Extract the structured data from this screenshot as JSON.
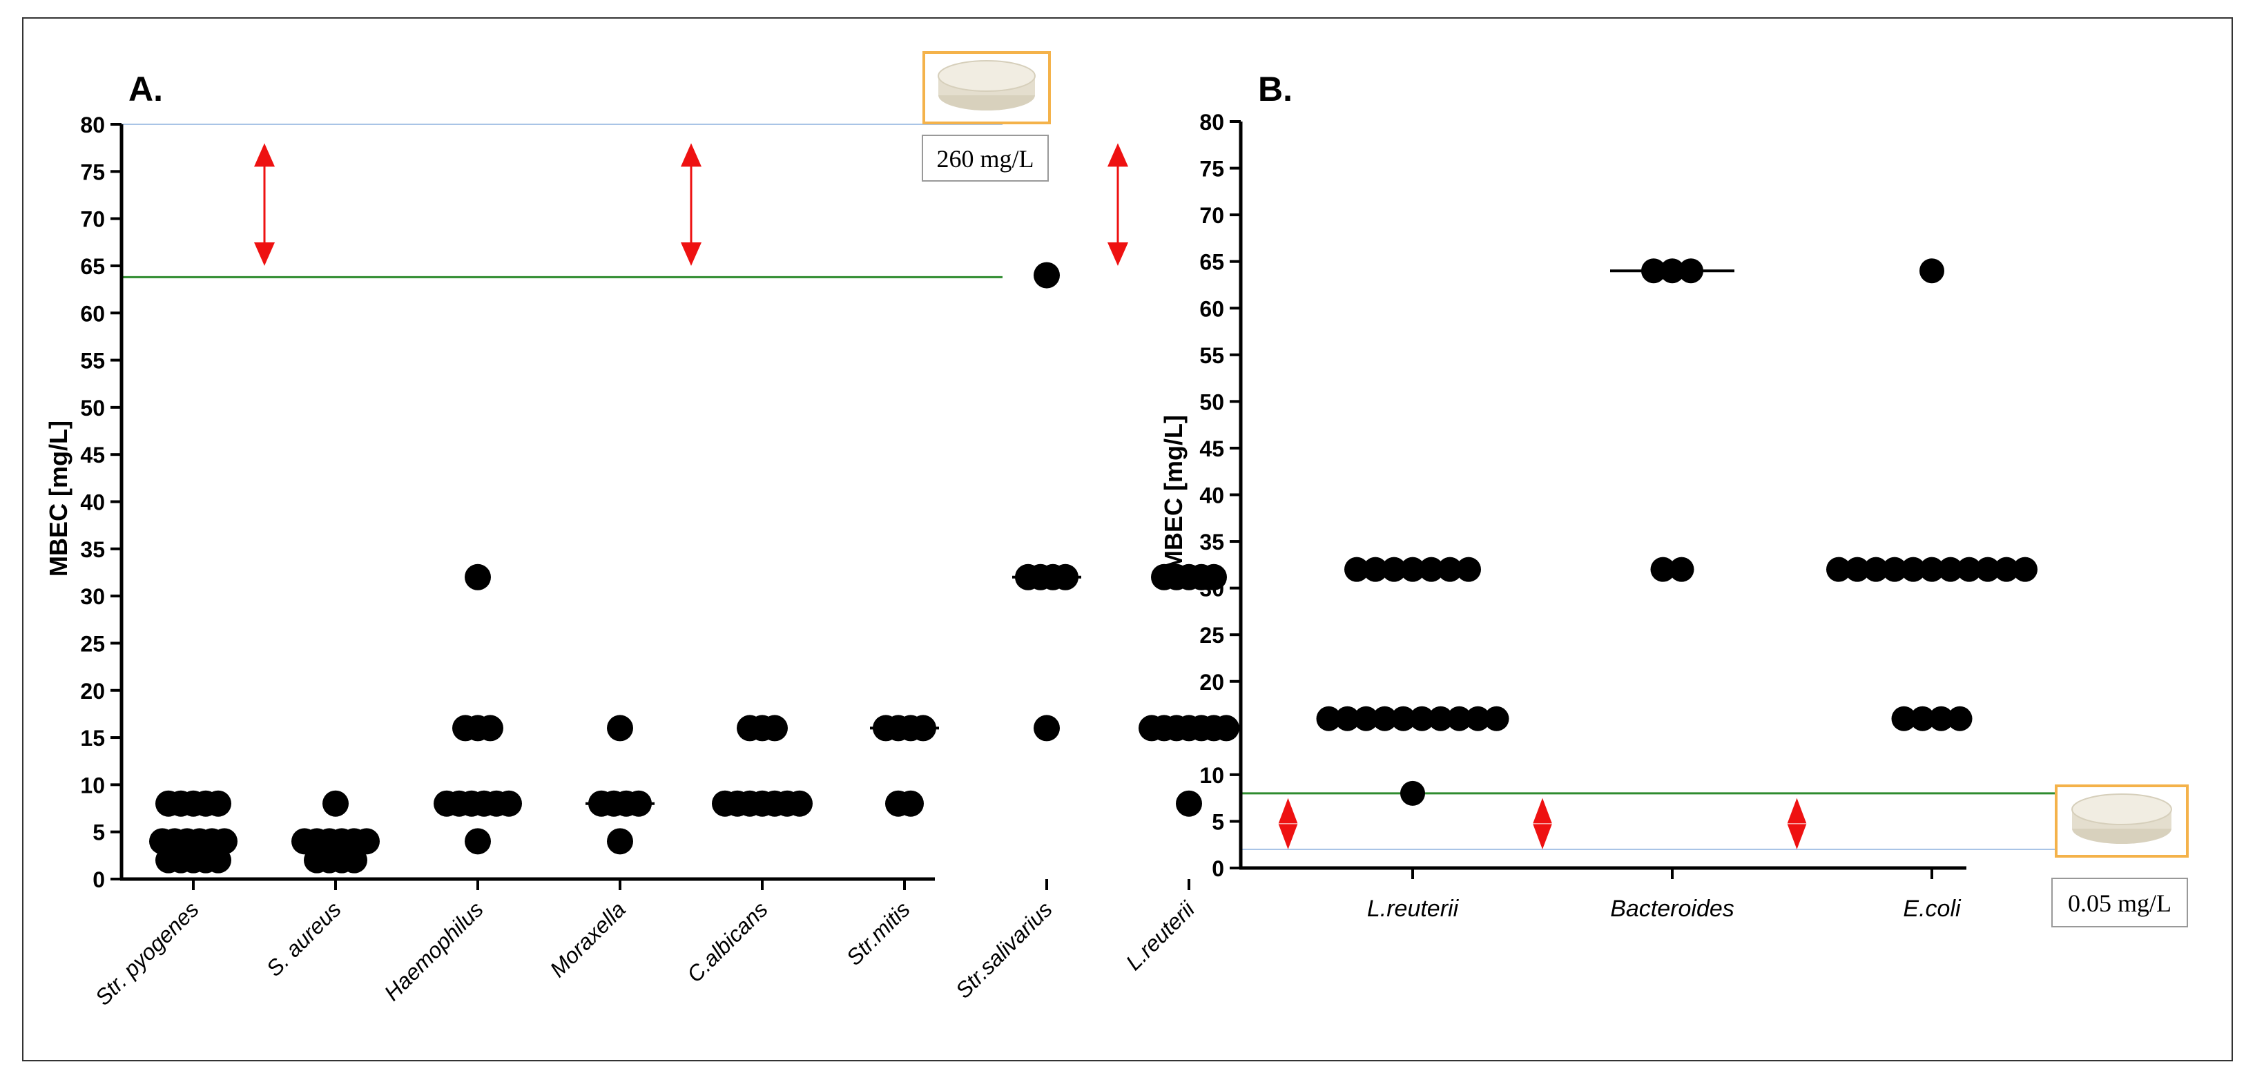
{
  "chart_data": [
    {
      "type": "scatter",
      "panel_label": "A.",
      "ylabel": "MBEC [mg/L]",
      "xlabel": "",
      "ylim": [
        0,
        80
      ],
      "yticks": [
        0,
        5,
        10,
        15,
        20,
        25,
        30,
        35,
        40,
        45,
        50,
        55,
        60,
        65,
        70,
        75,
        80
      ],
      "categories": [
        "Str. pyogenes",
        "S. aureus",
        "Haemophilus",
        "Moraxella",
        "C.albicans",
        "Str.mitis",
        "Str.salivarius",
        "L.reuterii"
      ],
      "points": [
        [
          8,
          8,
          8,
          8,
          8,
          4,
          4,
          4,
          4,
          4,
          4,
          2,
          2,
          2,
          2,
          2
        ],
        [
          8,
          4,
          4,
          4,
          4,
          4,
          4,
          2,
          2,
          2,
          2
        ],
        [
          32,
          16,
          16,
          16,
          8,
          8,
          8,
          8,
          8,
          8,
          4
        ],
        [
          16,
          8,
          8,
          8,
          8,
          4
        ],
        [
          16,
          16,
          16,
          8,
          8,
          8,
          8,
          8,
          8,
          8
        ],
        [
          16,
          16,
          16,
          16,
          8,
          8
        ],
        [
          64,
          32,
          32,
          32,
          32,
          16
        ],
        [
          32,
          32,
          32,
          32,
          32,
          16,
          16,
          16,
          16,
          16,
          16,
          16,
          8
        ]
      ],
      "medians": [
        4,
        4,
        8,
        8,
        8,
        16,
        32,
        16
      ],
      "reference_line": {
        "value": 63.8,
        "color": "#2e8b2e"
      },
      "upper_limit_line": {
        "value": 80,
        "color": "#a9c4e6"
      },
      "arrow_categories": [
        0.5,
        3.5,
        6.5
      ],
      "arrow_range": [
        65,
        78
      ],
      "concentration_label": "260 mg/L"
    },
    {
      "type": "scatter",
      "panel_label": "B.",
      "ylabel": "MBEC [mg/L]",
      "xlabel": "",
      "ylim": [
        0,
        80
      ],
      "yticks": [
        0,
        5,
        10,
        15,
        20,
        25,
        30,
        35,
        40,
        45,
        50,
        55,
        60,
        65,
        70,
        75,
        80
      ],
      "categories": [
        "L.reuterii",
        "Bacteroides",
        "E.coli"
      ],
      "points": [
        [
          32,
          32,
          32,
          32,
          32,
          32,
          32,
          16,
          16,
          16,
          16,
          16,
          16,
          16,
          16,
          16,
          16,
          8
        ],
        [
          64,
          64,
          64,
          32,
          32
        ],
        [
          64,
          32,
          32,
          32,
          32,
          32,
          32,
          32,
          32,
          32,
          32,
          32,
          16,
          16,
          16,
          16
        ]
      ],
      "medians": [
        16,
        64,
        32
      ],
      "reference_line": {
        "value": 8,
        "color": "#2e8b2e"
      },
      "lower_limit_line": {
        "value": 2,
        "color": "#a9c4e6"
      },
      "arrow_categories": [
        -0.48,
        0.5,
        1.48
      ],
      "arrow_range": [
        2,
        7.5
      ],
      "concentration_label": "0.05 mg/L"
    }
  ],
  "colors": {
    "frame": "#333333",
    "axis": "#000000",
    "point": "#000000",
    "arrow": "#ee1111",
    "tablet_border": "#f4b24a",
    "tablet_fill": "#ece7d8",
    "label_box": "#999999"
  }
}
